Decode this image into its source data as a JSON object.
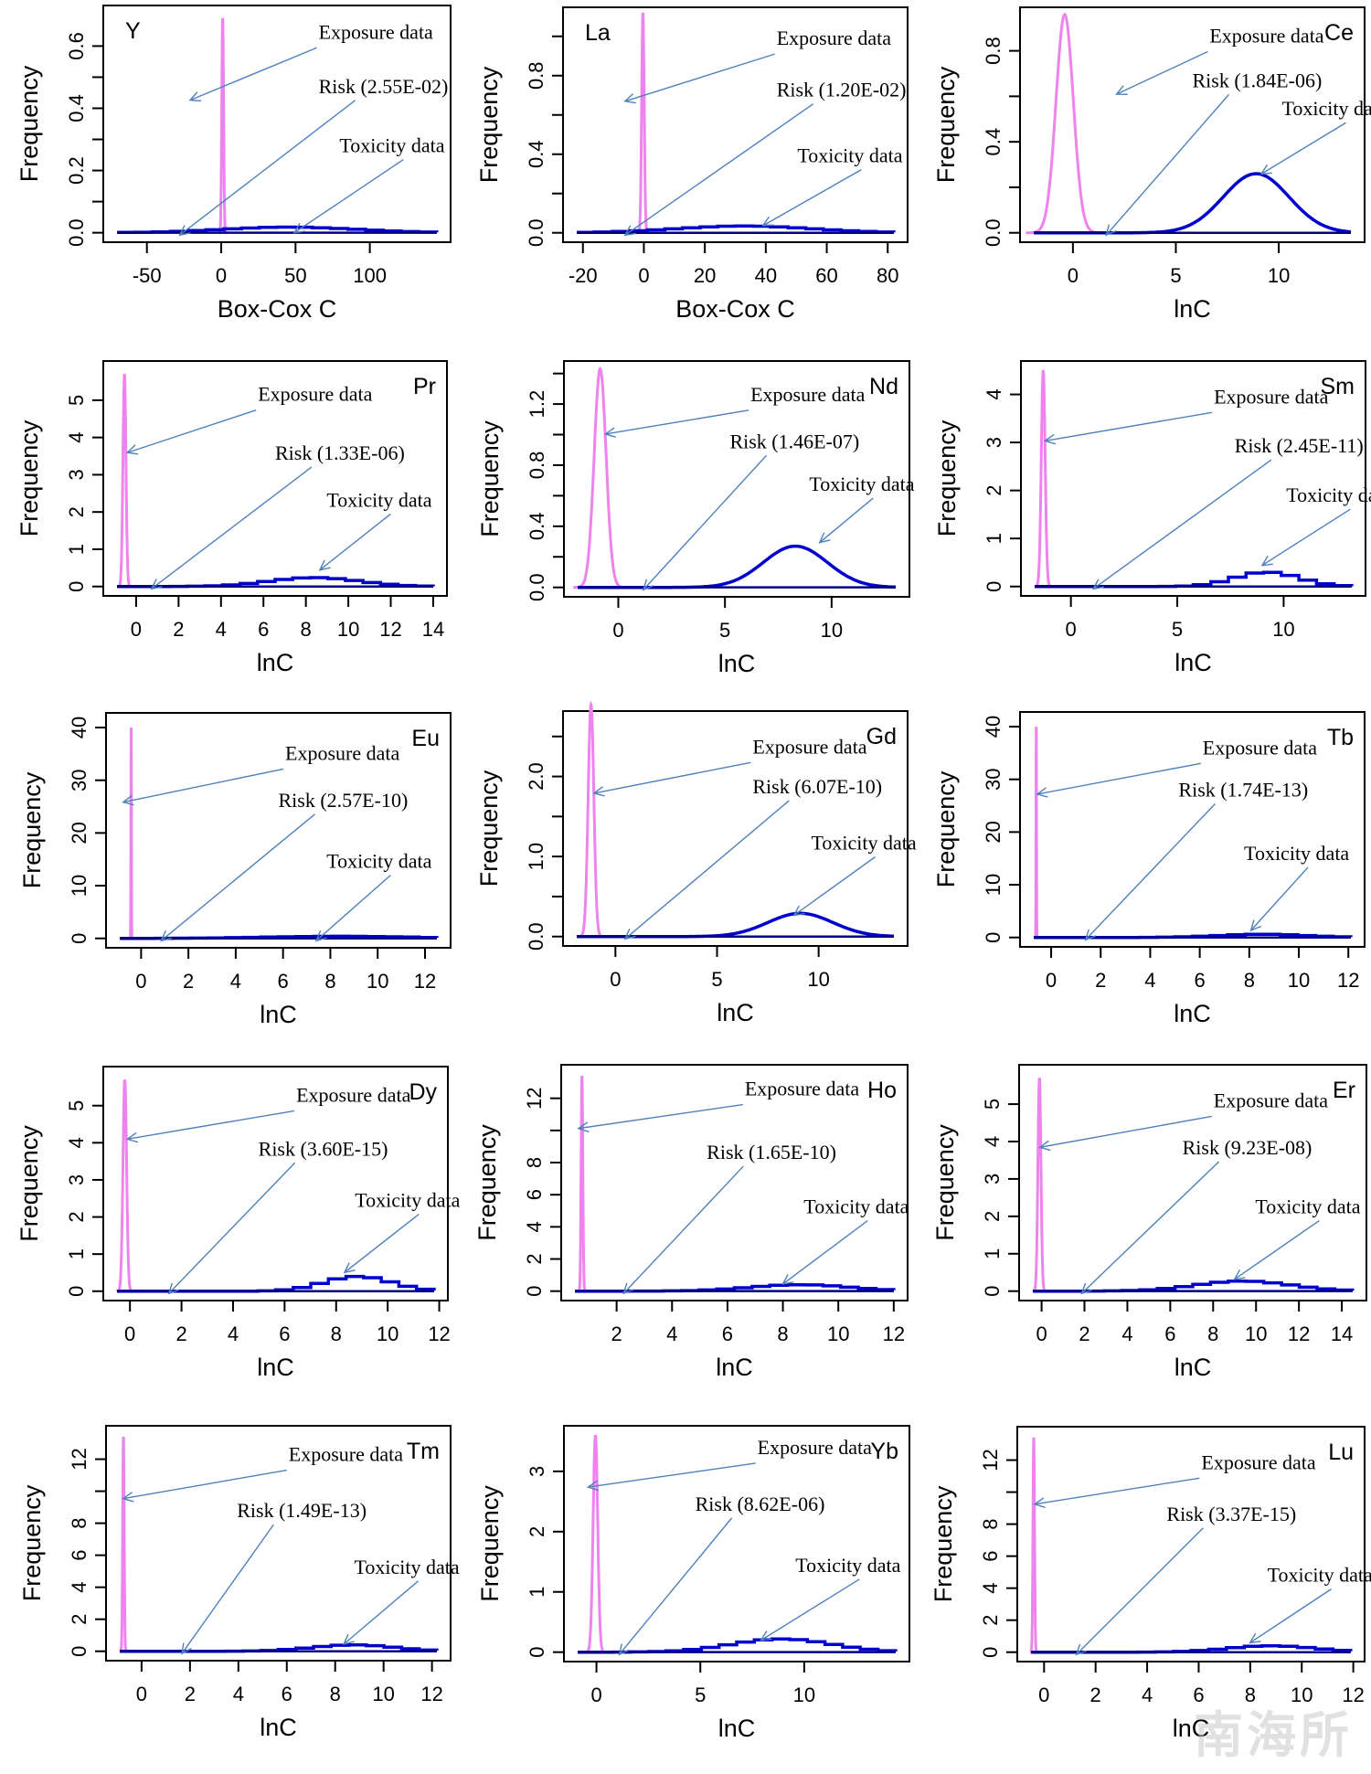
{
  "watermark": "南海所",
  "colors": {
    "exposure": "#ee82ee",
    "toxicity": "#0000cd",
    "arrow": "#4f81bd",
    "axis": "#000000"
  },
  "chart_data": [
    {
      "type": "line",
      "title": "Y",
      "xlabel": "Box-Cox C",
      "ylabel": "Frequency",
      "xlim": [
        -70,
        145
      ],
      "ylim": [
        0,
        0.7
      ],
      "xticks": [
        -50,
        0,
        50,
        100
      ],
      "yticks": [
        0.0,
        0.1,
        0.2,
        0.3,
        0.4,
        0.5,
        0.6
      ],
      "ytick_labels": {
        "0": "0.0",
        "0.2": "0.2",
        "0.4": "0.4",
        "0.6": "0.6"
      },
      "risk": "Risk (2.55E-02)",
      "exposure_label": "Exposure data",
      "toxicity_label": "Toxicity data",
      "exposure": {
        "mean": 1,
        "sd": 0.6,
        "peak": 0.69
      },
      "toxicity": {
        "mean": 40,
        "sd": 45,
        "peak": 0.018,
        "step": true
      },
      "title_pos": "top-left"
    },
    {
      "type": "line",
      "title": "La",
      "xlabel": "Box-Cox C",
      "ylabel": "Frequency",
      "xlim": [
        -22,
        82
      ],
      "ylim": [
        0,
        1.1
      ],
      "xticks": [
        -20,
        0,
        20,
        40,
        60,
        80
      ],
      "yticks": [
        0.0,
        0.2,
        0.4,
        0.6,
        0.8,
        1.0
      ],
      "ytick_labels": {
        "0": "0.0",
        "0.4": "0.4",
        "0.8": "0.8"
      },
      "risk": "Risk (1.20E-02)",
      "exposure_label": "Exposure data",
      "toxicity_label": "Toxicity data",
      "exposure": {
        "mean": -0.3,
        "sd": 0.4,
        "peak": 1.12
      },
      "toxicity": {
        "mean": 30,
        "sd": 22,
        "peak": 0.035,
        "step": true
      },
      "title_pos": "top-left"
    },
    {
      "type": "line",
      "title": "Ce",
      "xlabel": "lnC",
      "ylabel": "Frequency",
      "xlim": [
        -1.9,
        13.5
      ],
      "ylim": [
        0,
        0.95
      ],
      "xticks": [
        0,
        5,
        10
      ],
      "yticks": [
        0.0,
        0.2,
        0.4,
        0.6,
        0.8
      ],
      "ytick_labels": {
        "0": "0.0",
        "0.4": "0.4",
        "0.8": "0.8"
      },
      "risk": "Risk (1.84E-06)",
      "exposure_label": "Exposure data",
      "toxicity_label": "Toxicity data",
      "exposure": {
        "mean": -0.4,
        "sd": 0.42,
        "peak": 0.96
      },
      "toxicity": {
        "mean": 8.9,
        "sd": 1.6,
        "peak": 0.26,
        "step": false
      },
      "title_pos": "top-right"
    },
    {
      "type": "line",
      "title": "Pr",
      "xlabel": "lnC",
      "ylabel": "Frequency",
      "xlim": [
        -0.9,
        14
      ],
      "ylim": [
        0,
        5.8
      ],
      "xticks": [
        0,
        2,
        4,
        6,
        8,
        10,
        12,
        14
      ],
      "yticks": [
        0,
        1,
        2,
        3,
        4,
        5
      ],
      "ytick_labels": {
        "0": "0",
        "1": "1",
        "2": "2",
        "3": "3",
        "4": "4",
        "5": "5"
      },
      "risk": "Risk (1.33E-06)",
      "exposure_label": "Exposure data",
      "toxicity_label": "Toxicity data",
      "exposure": {
        "mean": -0.55,
        "sd": 0.07,
        "peak": 5.7
      },
      "toxicity": {
        "mean": 8,
        "sd": 2.1,
        "peak": 0.24,
        "step": true
      },
      "title_pos": "top-right"
    },
    {
      "type": "line",
      "title": "Nd",
      "xlabel": "lnC",
      "ylabel": "Frequency",
      "xlim": [
        -1.9,
        13
      ],
      "ylim": [
        0,
        1.42
      ],
      "xticks": [
        0,
        5,
        10
      ],
      "yticks": [
        0.0,
        0.2,
        0.4,
        0.6,
        0.8,
        1.0,
        1.2,
        1.4
      ],
      "ytick_labels": {
        "0": "0.0",
        "0.4": "0.4",
        "0.8": "0.8",
        "1.2": "1.2"
      },
      "risk": "Risk (1.46E-07)",
      "exposure_label": "Exposure data",
      "toxicity_label": "Toxicity data",
      "exposure": {
        "mean": -0.85,
        "sd": 0.28,
        "peak": 1.43
      },
      "toxicity": {
        "mean": 8.3,
        "sd": 1.5,
        "peak": 0.27,
        "step": false
      },
      "title_pos": "top-right"
    },
    {
      "type": "line",
      "title": "Sm",
      "xlabel": "lnC",
      "ylabel": "Frequency",
      "xlim": [
        -1.7,
        13.2
      ],
      "ylim": [
        0,
        4.5
      ],
      "xticks": [
        0,
        5,
        10
      ],
      "yticks": [
        0,
        1,
        2,
        3,
        4
      ],
      "ytick_labels": {
        "0": "0",
        "1": "1",
        "2": "2",
        "3": "3",
        "4": "4"
      },
      "risk": "Risk (2.45E-11)",
      "exposure_label": "Exposure data",
      "toxicity_label": "Toxicity data",
      "exposure": {
        "mean": -1.3,
        "sd": 0.09,
        "peak": 4.5
      },
      "toxicity": {
        "mean": 8.8,
        "sd": 1.5,
        "peak": 0.3,
        "step": true
      },
      "title_pos": "top-right"
    },
    {
      "type": "line",
      "title": "Eu",
      "xlabel": "lnC",
      "ylabel": "Frequency",
      "xlim": [
        -0.9,
        12.5
      ],
      "ylim": [
        0,
        41
      ],
      "xticks": [
        0,
        2,
        4,
        6,
        8,
        10,
        12
      ],
      "yticks": [
        0,
        10,
        20,
        30,
        40
      ],
      "ytick_labels": {
        "0": "0",
        "10": "10",
        "20": "20",
        "30": "30",
        "40": "40"
      },
      "risk": "Risk (2.57E-10)",
      "exposure_label": "Exposure data",
      "toxicity_label": "Toxicity data",
      "exposure": {
        "mean": -0.42,
        "sd": 0.01,
        "peak": 40
      },
      "toxicity": {
        "mean": 8,
        "sd": 3,
        "peak": 0.4,
        "step": true
      },
      "title_pos": "top-right"
    },
    {
      "type": "line",
      "title": "Gd",
      "xlabel": "lnC",
      "ylabel": "Frequency",
      "xlim": [
        -1.9,
        13.7
      ],
      "ylim": [
        0,
        2.7
      ],
      "xticks": [
        0,
        5,
        10
      ],
      "yticks": [
        0.0,
        0.5,
        1.0,
        1.5,
        2.0,
        2.5
      ],
      "ytick_labels": {
        "0": "0.0",
        "1": "1.0",
        "2": "2.0"
      },
      "risk": "Risk (6.07E-10)",
      "exposure_label": "Exposure data",
      "toxicity_label": "Toxicity data",
      "exposure": {
        "mean": -1.2,
        "sd": 0.14,
        "peak": 2.9
      },
      "toxicity": {
        "mean": 9.1,
        "sd": 1.6,
        "peak": 0.29,
        "step": false
      },
      "title_pos": "top-right"
    },
    {
      "type": "line",
      "title": "Tb",
      "xlabel": "lnC",
      "ylabel": "Frequency",
      "xlim": [
        -0.7,
        12.1
      ],
      "ylim": [
        0,
        41
      ],
      "xticks": [
        0,
        2,
        4,
        6,
        8,
        10,
        12
      ],
      "yticks": [
        0,
        10,
        20,
        30,
        40
      ],
      "ytick_labels": {
        "0": "0",
        "10": "10",
        "20": "20",
        "30": "30",
        "40": "40"
      },
      "risk": "Risk (1.74E-13)",
      "exposure_label": "Exposure data",
      "toxicity_label": "Toxicity data",
      "exposure": {
        "mean": -0.6,
        "sd": 0.01,
        "peak": 40
      },
      "toxicity": {
        "mean": 8.2,
        "sd": 1.8,
        "peak": 0.6,
        "step": true
      },
      "title_pos": "top-right"
    },
    {
      "type": "line",
      "title": "Dy",
      "xlabel": "lnC",
      "ylabel": "Frequency",
      "xlim": [
        -0.5,
        11.8
      ],
      "ylim": [
        0,
        5.8
      ],
      "xticks": [
        0,
        2,
        4,
        6,
        8,
        10,
        12
      ],
      "yticks": [
        0,
        1,
        2,
        3,
        4,
        5
      ],
      "ytick_labels": {
        "0": "0",
        "1": "1",
        "2": "2",
        "3": "3",
        "4": "4",
        "5": "5"
      },
      "risk": "Risk (3.60E-15)",
      "exposure_label": "Exposure data",
      "toxicity_label": "Toxicity data",
      "exposure": {
        "mean": -0.2,
        "sd": 0.07,
        "peak": 5.7
      },
      "toxicity": {
        "mean": 8.5,
        "sd": 1.3,
        "peak": 0.4,
        "step": true
      },
      "title_pos": "top-right"
    },
    {
      "type": "line",
      "title": "Ho",
      "xlabel": "lnC",
      "ylabel": "Frequency",
      "xlim": [
        0.5,
        12
      ],
      "ylim": [
        0,
        13.5
      ],
      "xticks": [
        2,
        4,
        6,
        8,
        10,
        12
      ],
      "yticks": [
        0,
        2,
        4,
        6,
        8,
        10,
        12
      ],
      "ytick_labels": {
        "0": "0",
        "2": "2",
        "4": "4",
        "6": "6",
        "8": "8",
        "12": "12"
      },
      "risk": "Risk (1.65E-10)",
      "exposure_label": "Exposure data",
      "toxicity_label": "Toxicity data",
      "exposure": {
        "mean": 0.75,
        "sd": 0.03,
        "peak": 13.4
      },
      "toxicity": {
        "mean": 8.3,
        "sd": 1.8,
        "peak": 0.4,
        "step": true
      },
      "title_pos": "top-right"
    },
    {
      "type": "line",
      "title": "Er",
      "xlabel": "lnC",
      "ylabel": "Frequency",
      "xlim": [
        -0.4,
        14.5
      ],
      "ylim": [
        0,
        5.8
      ],
      "xticks": [
        0,
        2,
        4,
        6,
        8,
        10,
        12,
        14
      ],
      "yticks": [
        0,
        1,
        2,
        3,
        4,
        5
      ],
      "ytick_labels": {
        "0": "0",
        "1": "1",
        "2": "2",
        "3": "3",
        "4": "4",
        "5": "5"
      },
      "risk": "Risk (9.23E-08)",
      "exposure_label": "Exposure data",
      "toxicity_label": "Toxicity data",
      "exposure": {
        "mean": -0.1,
        "sd": 0.07,
        "peak": 5.7
      },
      "toxicity": {
        "mean": 9,
        "sd": 2.2,
        "peak": 0.27,
        "step": true
      },
      "title_pos": "top-right"
    },
    {
      "type": "line",
      "title": "Tm",
      "xlabel": "lnC",
      "ylabel": "Frequency",
      "xlim": [
        -0.9,
        12.2
      ],
      "ylim": [
        0,
        13.5
      ],
      "xticks": [
        0,
        2,
        4,
        6,
        8,
        10,
        12
      ],
      "yticks": [
        0,
        2,
        4,
        6,
        8,
        10,
        12
      ],
      "ytick_labels": {
        "0": "0",
        "2": "2",
        "4": "4",
        "6": "6",
        "8": "8",
        "12": "12"
      },
      "risk": "Risk (1.49E-13)",
      "exposure_label": "Exposure data",
      "toxicity_label": "Toxicity data",
      "exposure": {
        "mean": -0.75,
        "sd": 0.03,
        "peak": 13.4
      },
      "toxicity": {
        "mean": 8.4,
        "sd": 1.7,
        "peak": 0.4,
        "step": true
      },
      "title_pos": "top-right"
    },
    {
      "type": "line",
      "title": "Yb",
      "xlabel": "lnC",
      "ylabel": "Frequency",
      "xlim": [
        -0.9,
        14.4
      ],
      "ylim": [
        0,
        3.6
      ],
      "xticks": [
        0,
        5,
        10
      ],
      "yticks": [
        0,
        1,
        2,
        3
      ],
      "ytick_labels": {
        "0": "0",
        "1": "1",
        "2": "2",
        "3": "3"
      },
      "risk": "Risk (8.62E-06)",
      "exposure_label": "Exposure data",
      "toxicity_label": "Toxicity data",
      "exposure": {
        "mean": -0.05,
        "sd": 0.11,
        "peak": 3.6
      },
      "toxicity": {
        "mean": 8.5,
        "sd": 2.4,
        "peak": 0.22,
        "step": true
      },
      "title_pos": "top-right"
    },
    {
      "type": "line",
      "title": "Lu",
      "xlabel": "lnC",
      "ylabel": "Frequency",
      "xlim": [
        -0.5,
        11.9
      ],
      "ylim": [
        0,
        13.5
      ],
      "xticks": [
        0,
        2,
        4,
        6,
        8,
        10,
        12
      ],
      "yticks": [
        0,
        2,
        4,
        6,
        8,
        10,
        12
      ],
      "ytick_labels": {
        "0": "0",
        "2": "2",
        "4": "4",
        "6": "6",
        "8": "8",
        "12": "12"
      },
      "risk": "Risk (3.37E-15)",
      "exposure_label": "Exposure data",
      "toxicity_label": "Toxicity data",
      "exposure": {
        "mean": -0.4,
        "sd": 0.03,
        "peak": 13.4
      },
      "toxicity": {
        "mean": 8.5,
        "sd": 1.7,
        "peak": 0.4,
        "step": true
      },
      "title_pos": "top-right"
    }
  ]
}
